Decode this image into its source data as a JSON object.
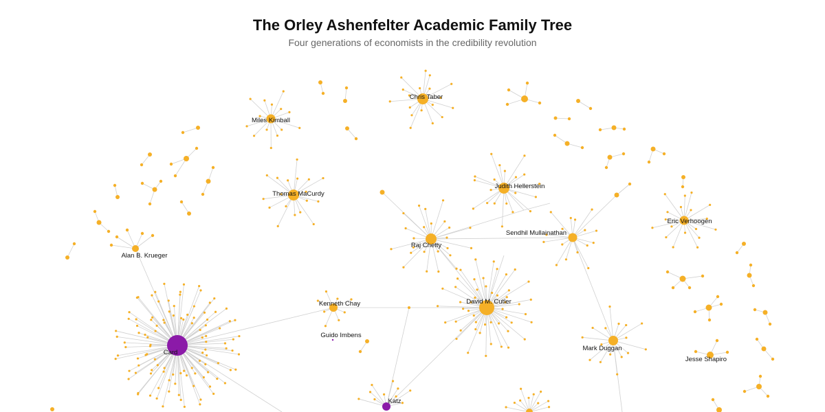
{
  "title": "The Orley Ashenfelter Academic Family Tree",
  "subtitle": "Four generations of economists in the credibility revolution",
  "colors": {
    "advisor": "#8b1aa8",
    "student": "#f5b027",
    "edge": "#d0d0d0"
  },
  "labels": {
    "card": "Card",
    "katz": "Katz",
    "krueger": "Alan B. Krueger",
    "kimball": "Miles Kimball",
    "taber": "Chris Taber",
    "macurdy": "Thomas MaCurdy",
    "hellerstein": "Judith Hellerstein",
    "chetty": "Raj Chetty",
    "mullainathan": "Sendhil Mullainathan",
    "verhoogen": "Eric Verhoogen",
    "chay": "Kenneth Chay",
    "imbens": "Guido Imbens",
    "cutler": "David M. Cutler",
    "duggan": "Mark Duggan",
    "shapiro": "Jesse Shapiro"
  }
}
